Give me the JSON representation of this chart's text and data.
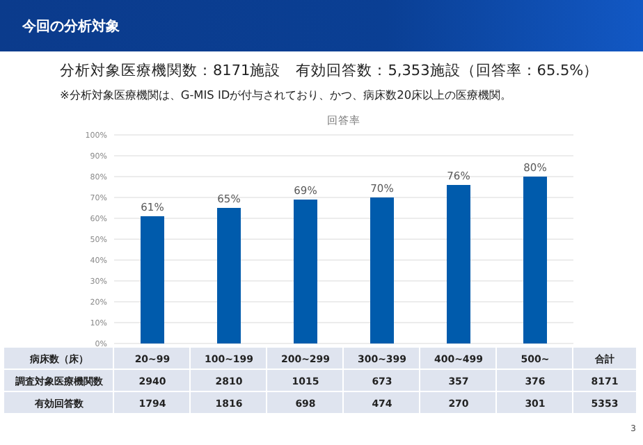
{
  "chart_data": [
    {
      "type": "bar",
      "title": "回答率",
      "tick_labels": "y",
      "annotations": [
        "今回の分析対象",
        "分析対象医療機関数：8171施設　有効回答数：5,353施設（回答率：65.5%）",
        "※分析対象医療機関は、G-MIS IDが付与されており、かつ、病床数20床以上の医療機関。",
        "3"
      ],
      "categories": [
        null,
        null,
        null,
        null,
        null,
        null
      ],
      "values": [
        61,
        65,
        69,
        70,
        76,
        80
      ],
      "value_labels": [
        "61%",
        "65%",
        "69%",
        "70%",
        "76%",
        "80%"
      ],
      "color": "#005bac",
      "ylim": [
        0,
        100
      ],
      "yticks": [
        {
          "value": 0,
          "label": "0%"
        },
        {
          "value": 10,
          "label": "10%"
        },
        {
          "value": 20,
          "label": "20%"
        },
        {
          "value": 30,
          "label": "30%"
        },
        {
          "value": 40,
          "label": "40%"
        },
        {
          "value": 50,
          "label": "50%"
        },
        {
          "value": 60,
          "label": "60%"
        },
        {
          "value": 70,
          "label": "70%"
        },
        {
          "value": 80,
          "label": "80%"
        },
        {
          "value": 90,
          "label": "90%"
        },
        {
          "value": 100,
          "label": "100%"
        }
      ],
      "grid": "y"
    },
    {
      "type": "other",
      "xlabel": "病床数（床）",
      "categories": [
        "20~99",
        "100~199",
        "200~299",
        "300~399",
        "400~499",
        "500~",
        "合計"
      ],
      "series": [
        {
          "name": "調査対象医療機関数",
          "values": [
            2940,
            2810,
            1015,
            673,
            357,
            376,
            8171
          ]
        },
        {
          "name": "有効回答数",
          "values": [
            1794,
            1816,
            698,
            474,
            270,
            301,
            5353
          ]
        }
      ],
      "data_labels": true
    }
  ]
}
